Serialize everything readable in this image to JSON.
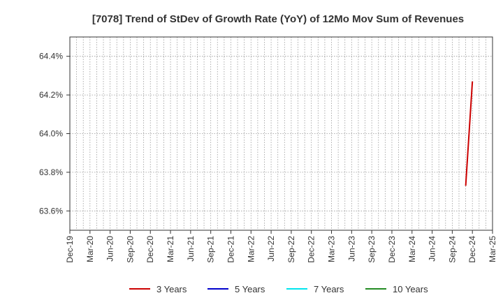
{
  "chart_data": {
    "type": "line",
    "title": "[7078]  Trend of StDev of Growth Rate (YoY) of 12Mo Mov Sum of Revenues",
    "xlabel": "",
    "ylabel": "",
    "x_ticks": [
      "Dec-19",
      "Mar-20",
      "Jun-20",
      "Sep-20",
      "Dec-20",
      "Mar-21",
      "Jun-21",
      "Sep-21",
      "Dec-21",
      "Mar-22",
      "Jun-22",
      "Sep-22",
      "Dec-22",
      "Mar-23",
      "Jun-23",
      "Sep-23",
      "Dec-23",
      "Mar-24",
      "Jun-24",
      "Sep-24",
      "Dec-24",
      "Mar-25"
    ],
    "y_ticks": [
      "63.6%",
      "63.8%",
      "64.0%",
      "64.2%",
      "64.4%"
    ],
    "y_tick_values": [
      63.6,
      63.8,
      64.0,
      64.2,
      64.4
    ],
    "ylim": [
      63.5,
      64.5
    ],
    "x_unit": "month",
    "grid": true,
    "grid_style": "dotted",
    "legend_position": "bottom",
    "series": [
      {
        "name": "3 Years",
        "color": "#cc0000",
        "points": [
          {
            "x": "Nov-24",
            "y": 63.73
          },
          {
            "x": "Dec-24",
            "y": 64.27
          }
        ]
      },
      {
        "name": "5 Years",
        "color": "#0000cc",
        "points": []
      },
      {
        "name": "7 Years",
        "color": "#00e5ee",
        "points": []
      },
      {
        "name": "10 Years",
        "color": "#228b22",
        "points": []
      }
    ]
  }
}
